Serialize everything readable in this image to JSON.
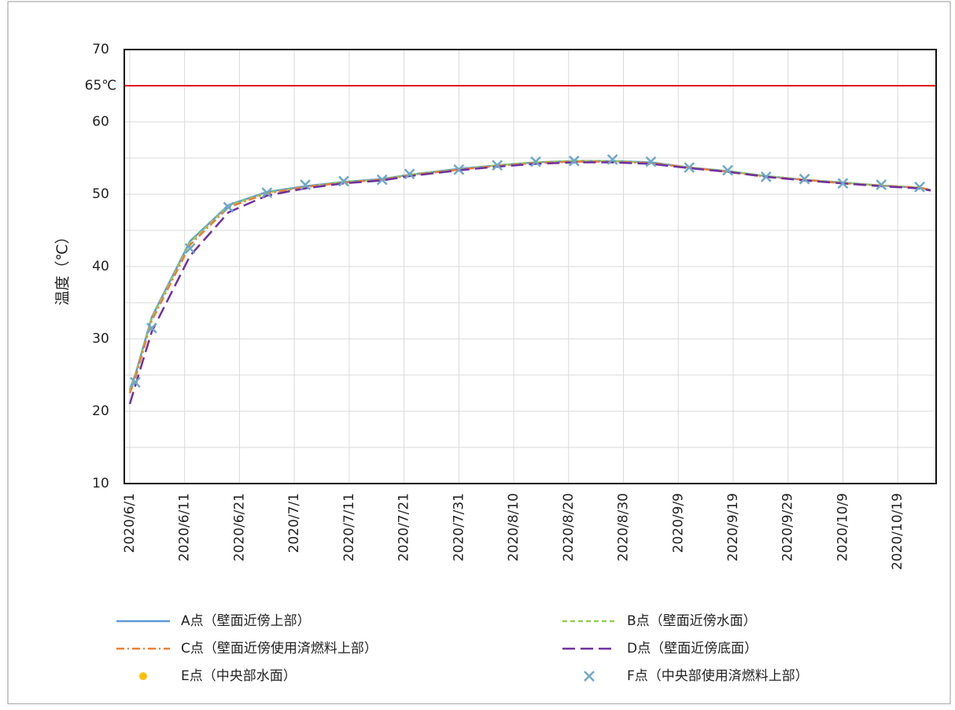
{
  "chart_data": {
    "type": "line",
    "y_label": "温度（℃）",
    "x": [
      "2020/6/1",
      "2020/6/2",
      "2020/6/5",
      "2020/6/12",
      "2020/6/19",
      "2020/6/26",
      "2020/7/3",
      "2020/7/10",
      "2020/7/17",
      "2020/7/22",
      "2020/7/31",
      "2020/8/7",
      "2020/8/14",
      "2020/8/21",
      "2020/8/28",
      "2020/9/4",
      "2020/9/11",
      "2020/9/18",
      "2020/9/25",
      "2020/10/2",
      "2020/10/9",
      "2020/10/16",
      "2020/10/23",
      "2020/10/25"
    ],
    "xlim": [
      "2020/5/31",
      "2020/10/26"
    ],
    "xticks": [
      "2020/6/1",
      "2020/6/11",
      "2020/6/21",
      "2020/7/1",
      "2020/7/11",
      "2020/7/21",
      "2020/7/31",
      "2020/8/10",
      "2020/8/20",
      "2020/8/30",
      "2020/9/9",
      "2020/9/19",
      "2020/9/29",
      "2020/10/9",
      "2020/10/19"
    ],
    "ylim": [
      10,
      70
    ],
    "yticks": [
      10,
      20,
      30,
      40,
      50,
      60,
      {
        "value": 65,
        "label": "65℃"
      },
      70
    ],
    "minor_yticks": [
      15,
      25,
      35,
      45,
      55
    ],
    "grid": true,
    "reference_line": {
      "value": 65,
      "color": "#e01010"
    },
    "series": [
      {
        "name": "A点（壁面近傍上部）",
        "color": "#5b9bd5",
        "line_style": "solid",
        "values": [
          23,
          25,
          33,
          43.5,
          48.5,
          50.3,
          51.1,
          51.7,
          52.1,
          52.7,
          53.5,
          54,
          54.4,
          54.6,
          54.6,
          54.4,
          53.7,
          53.2,
          52.5,
          52,
          51.6,
          51.2,
          50.9,
          50.6
        ]
      },
      {
        "name": "B点（壁面近傍水面）",
        "color": "#92d050",
        "line_style": "dashed",
        "values": [
          22.8,
          24.8,
          32.8,
          43.3,
          48.4,
          50.2,
          51,
          51.7,
          52,
          52.7,
          53.4,
          54,
          54.4,
          54.6,
          54.6,
          54.3,
          53.7,
          53.2,
          52.5,
          52,
          51.6,
          51.2,
          50.9,
          50.6
        ]
      },
      {
        "name": "C点（壁面近傍使用済燃料上部）",
        "color": "#ed7d31",
        "line_style": "dashdot",
        "values": [
          22.5,
          24.5,
          32.5,
          43,
          48.2,
          50.1,
          51,
          51.6,
          52,
          52.6,
          53.4,
          53.9,
          54.3,
          54.5,
          54.5,
          54.3,
          53.7,
          53.1,
          52.4,
          52,
          51.5,
          51.2,
          50.9,
          50.6
        ]
      },
      {
        "name": "D点（壁面近傍底面）",
        "color": "#7030a0",
        "line_style": "longdash",
        "values": [
          21,
          23.5,
          31,
          41.5,
          47.5,
          49.8,
          50.8,
          51.5,
          51.9,
          52.5,
          53.3,
          53.8,
          54.2,
          54.4,
          54.4,
          54.2,
          53.6,
          53.1,
          52.4,
          51.9,
          51.5,
          51.1,
          50.8,
          50.5
        ]
      },
      {
        "name": "E点（中央部水面）",
        "color": "#ffc000",
        "line_style": "circle",
        "values": [
          null,
          null,
          null,
          null,
          null,
          null,
          null,
          null,
          null,
          null,
          null,
          null,
          null,
          null,
          null,
          null,
          null,
          null,
          null,
          null,
          null,
          null,
          null,
          null
        ]
      },
      {
        "name": "F点（中央部使用済燃料上部）",
        "color": "#6fa8c8",
        "line_style": "x",
        "values": [
          null,
          24,
          31.5,
          42.5,
          48.2,
          50.2,
          51.3,
          51.8,
          52,
          52.8,
          53.4,
          54,
          54.5,
          54.6,
          54.8,
          54.5,
          53.7,
          53.3,
          52.4,
          52.1,
          51.5,
          51.3,
          51,
          null
        ]
      }
    ]
  }
}
